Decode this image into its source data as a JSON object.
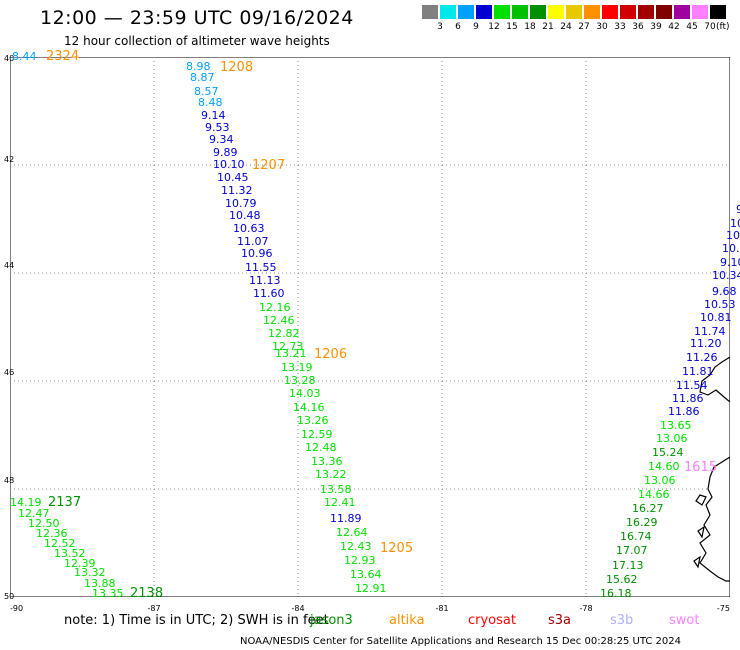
{
  "header": {
    "title": "12:00 — 23:59 UTC 09/16/2024",
    "subtitle": "12 hour collection of altimeter wave heights"
  },
  "legend": {
    "unit": "(ft)",
    "bins": [
      {
        "label": "3",
        "color": "#808080"
      },
      {
        "label": "6",
        "color": "#00e8e8"
      },
      {
        "label": "9",
        "color": "#00a0ff"
      },
      {
        "label": "12",
        "color": "#0000d0"
      },
      {
        "label": "15",
        "color": "#00e000"
      },
      {
        "label": "18",
        "color": "#00c000"
      },
      {
        "label": "21",
        "color": "#009000"
      },
      {
        "label": "24",
        "color": "#ffff00"
      },
      {
        "label": "27",
        "color": "#e8c800"
      },
      {
        "label": "30",
        "color": "#ff9000"
      },
      {
        "label": "33",
        "color": "#ff0000"
      },
      {
        "label": "36",
        "color": "#d00000"
      },
      {
        "label": "39",
        "color": "#a00000"
      },
      {
        "label": "42",
        "color": "#800000"
      },
      {
        "label": "45",
        "color": "#a000a0"
      },
      {
        "label": "70",
        "color": "#ff80ff"
      },
      {
        "label": "",
        "color": "#000000"
      }
    ]
  },
  "axes": {
    "lat_labels": [
      "40",
      "42",
      "44",
      "46",
      "48",
      "50"
    ],
    "lon_labels": [
      "-90",
      "-87",
      "-84",
      "-81",
      "-78",
      "-75"
    ]
  },
  "passes": [
    {
      "time": "2324",
      "color": "#ff9000"
    },
    {
      "time": "1208",
      "color": "#ff9000"
    },
    {
      "time": "1207",
      "color": "#ff9000"
    },
    {
      "time": "1206",
      "color": "#ff9000"
    },
    {
      "time": "1205",
      "color": "#ff9000"
    },
    {
      "time": "2137",
      "color": "#009000"
    },
    {
      "time": "2138",
      "color": "#009000"
    },
    {
      "time": "1615",
      "color": "#ff80ff"
    }
  ],
  "measurements": [
    {
      "v": "8.44",
      "c": "#00a0ff"
    },
    {
      "v": "8.98",
      "c": "#00a0ff"
    },
    {
      "v": "8.87",
      "c": "#00a0ff"
    },
    {
      "v": "8.57",
      "c": "#00a0ff"
    },
    {
      "v": "8.48",
      "c": "#00a0ff"
    },
    {
      "v": "9.14",
      "c": "#0000d0"
    },
    {
      "v": "9.53",
      "c": "#0000d0"
    },
    {
      "v": "9.34",
      "c": "#0000d0"
    },
    {
      "v": "9.89",
      "c": "#0000d0"
    },
    {
      "v": "10.10",
      "c": "#0000d0"
    },
    {
      "v": "10.45",
      "c": "#0000d0"
    },
    {
      "v": "11.32",
      "c": "#0000d0"
    },
    {
      "v": "10.79",
      "c": "#0000d0"
    },
    {
      "v": "10.48",
      "c": "#0000d0"
    },
    {
      "v": "10.63",
      "c": "#0000d0"
    },
    {
      "v": "11.07",
      "c": "#0000d0"
    },
    {
      "v": "10.96",
      "c": "#0000d0"
    },
    {
      "v": "11.55",
      "c": "#0000d0"
    },
    {
      "v": "11.13",
      "c": "#0000d0"
    },
    {
      "v": "11.60",
      "c": "#0000d0"
    },
    {
      "v": "12.16",
      "c": "#00e000"
    },
    {
      "v": "12.46",
      "c": "#00e000"
    },
    {
      "v": "12.82",
      "c": "#00e000"
    },
    {
      "v": "12.73",
      "c": "#00e000"
    },
    {
      "v": "13.21",
      "c": "#00e000"
    },
    {
      "v": "13.19",
      "c": "#00e000"
    },
    {
      "v": "13.28",
      "c": "#00e000"
    },
    {
      "v": "14.03",
      "c": "#00e000"
    },
    {
      "v": "14.16",
      "c": "#00e000"
    },
    {
      "v": "13.26",
      "c": "#00e000"
    },
    {
      "v": "12.59",
      "c": "#00e000"
    },
    {
      "v": "12.48",
      "c": "#00e000"
    },
    {
      "v": "13.36",
      "c": "#00e000"
    },
    {
      "v": "13.22",
      "c": "#00e000"
    },
    {
      "v": "13.58",
      "c": "#00e000"
    },
    {
      "v": "12.41",
      "c": "#00e000"
    },
    {
      "v": "11.89",
      "c": "#0000d0"
    },
    {
      "v": "12.64",
      "c": "#00e000"
    },
    {
      "v": "12.43",
      "c": "#00e000"
    },
    {
      "v": "12.93",
      "c": "#00e000"
    },
    {
      "v": "13.64",
      "c": "#00e000"
    },
    {
      "v": "12.91",
      "c": "#00e000"
    },
    {
      "v": "14.19",
      "c": "#00e000"
    },
    {
      "v": "12.47",
      "c": "#00e000"
    },
    {
      "v": "12.50",
      "c": "#00e000"
    },
    {
      "v": "12.36",
      "c": "#00e000"
    },
    {
      "v": "12.52",
      "c": "#00e000"
    },
    {
      "v": "13.52",
      "c": "#00e000"
    },
    {
      "v": "12.39",
      "c": "#00e000"
    },
    {
      "v": "13.32",
      "c": "#00e000"
    },
    {
      "v": "13.88",
      "c": "#00e000"
    },
    {
      "v": "13.35",
      "c": "#00e000"
    },
    {
      "v": "9",
      "c": "#0000d0"
    },
    {
      "v": "10",
      "c": "#0000d0"
    },
    {
      "v": "10.",
      "c": "#0000d0"
    },
    {
      "v": "10.7",
      "c": "#0000d0"
    },
    {
      "v": "9.10",
      "c": "#0000d0"
    },
    {
      "v": "10.34",
      "c": "#0000d0"
    },
    {
      "v": "9.68",
      "c": "#0000d0"
    },
    {
      "v": "10.53",
      "c": "#0000d0"
    },
    {
      "v": "10.81",
      "c": "#0000d0"
    },
    {
      "v": "11.74",
      "c": "#0000d0"
    },
    {
      "v": "11.20",
      "c": "#0000d0"
    },
    {
      "v": "11.26",
      "c": "#0000d0"
    },
    {
      "v": "11.81",
      "c": "#0000d0"
    },
    {
      "v": "11.54",
      "c": "#0000d0"
    },
    {
      "v": "11.86",
      "c": "#0000d0"
    },
    {
      "v": "11.86",
      "c": "#0000d0"
    },
    {
      "v": "13.65",
      "c": "#00e000"
    },
    {
      "v": "13.06",
      "c": "#00e000"
    },
    {
      "v": "15.24",
      "c": "#009000"
    },
    {
      "v": "14.60",
      "c": "#00e000"
    },
    {
      "v": "13.06",
      "c": "#00e000"
    },
    {
      "v": "14.66",
      "c": "#00e000"
    },
    {
      "v": "16.27",
      "c": "#009000"
    },
    {
      "v": "16.29",
      "c": "#009000"
    },
    {
      "v": "16.74",
      "c": "#009000"
    },
    {
      "v": "17.07",
      "c": "#009000"
    },
    {
      "v": "17.13",
      "c": "#009000"
    },
    {
      "v": "15.62",
      "c": "#009000"
    },
    {
      "v": "16.18",
      "c": "#009000"
    }
  ],
  "footer": {
    "note": "note:  1) Time is in UTC; 2) SWH is in feet",
    "satellites": [
      {
        "name": "jason3",
        "color": "#009000"
      },
      {
        "name": "altika",
        "color": "#ff9000"
      },
      {
        "name": "cryosat",
        "color": "#ff0000"
      },
      {
        "name": "s3a",
        "color": "#a00000"
      },
      {
        "name": "s3b",
        "color": "#b0b0ff"
      },
      {
        "name": "swot",
        "color": "#ff80ff"
      }
    ],
    "credit": "NOAA/NESDIS Center for Satellite Applications and Research     15 Dec 00:28:25 UTC 2024"
  }
}
